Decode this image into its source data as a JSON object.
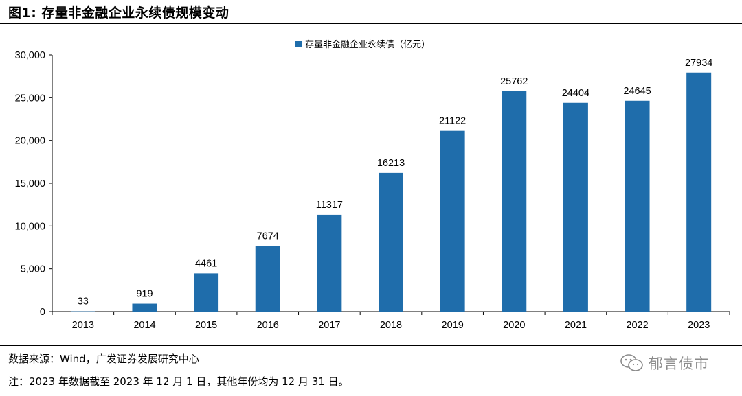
{
  "figure": {
    "title": "图1:  存量非金融企业永续债规模变动",
    "source": "数据来源：Wind，广发证券发展研究中心",
    "note": "注：2023 年数据截至 2023 年 12 月 1 日，其他年份均为 12 月 31 日。",
    "watermark": "郁言债市",
    "watermark_icon": "wechat-icon"
  },
  "colors": {
    "bar": "#1f6dab",
    "axis": "#000000"
  },
  "chart_data": {
    "type": "bar",
    "categories": [
      "2013",
      "2014",
      "2015",
      "2016",
      "2017",
      "2018",
      "2019",
      "2020",
      "2021",
      "2022",
      "2023"
    ],
    "series": [
      {
        "name": "存量非金融企业永续债（亿元）",
        "values": [
          33,
          919,
          4461,
          7674,
          11317,
          16213,
          21122,
          25762,
          24404,
          24645,
          27934
        ],
        "labels": [
          "33",
          "919",
          "4461",
          "7674",
          "11317",
          "16213",
          "21122",
          "25762",
          "24404",
          "24645",
          "27934"
        ]
      }
    ],
    "ylim": [
      0,
      30000
    ],
    "yticks": [
      0,
      5000,
      10000,
      15000,
      20000,
      25000,
      30000
    ],
    "ytick_labels": [
      "0",
      "5,000",
      "10,000",
      "15,000",
      "20,000",
      "25,000",
      "30,000"
    ],
    "legend_position": "top-center",
    "grid": false
  }
}
